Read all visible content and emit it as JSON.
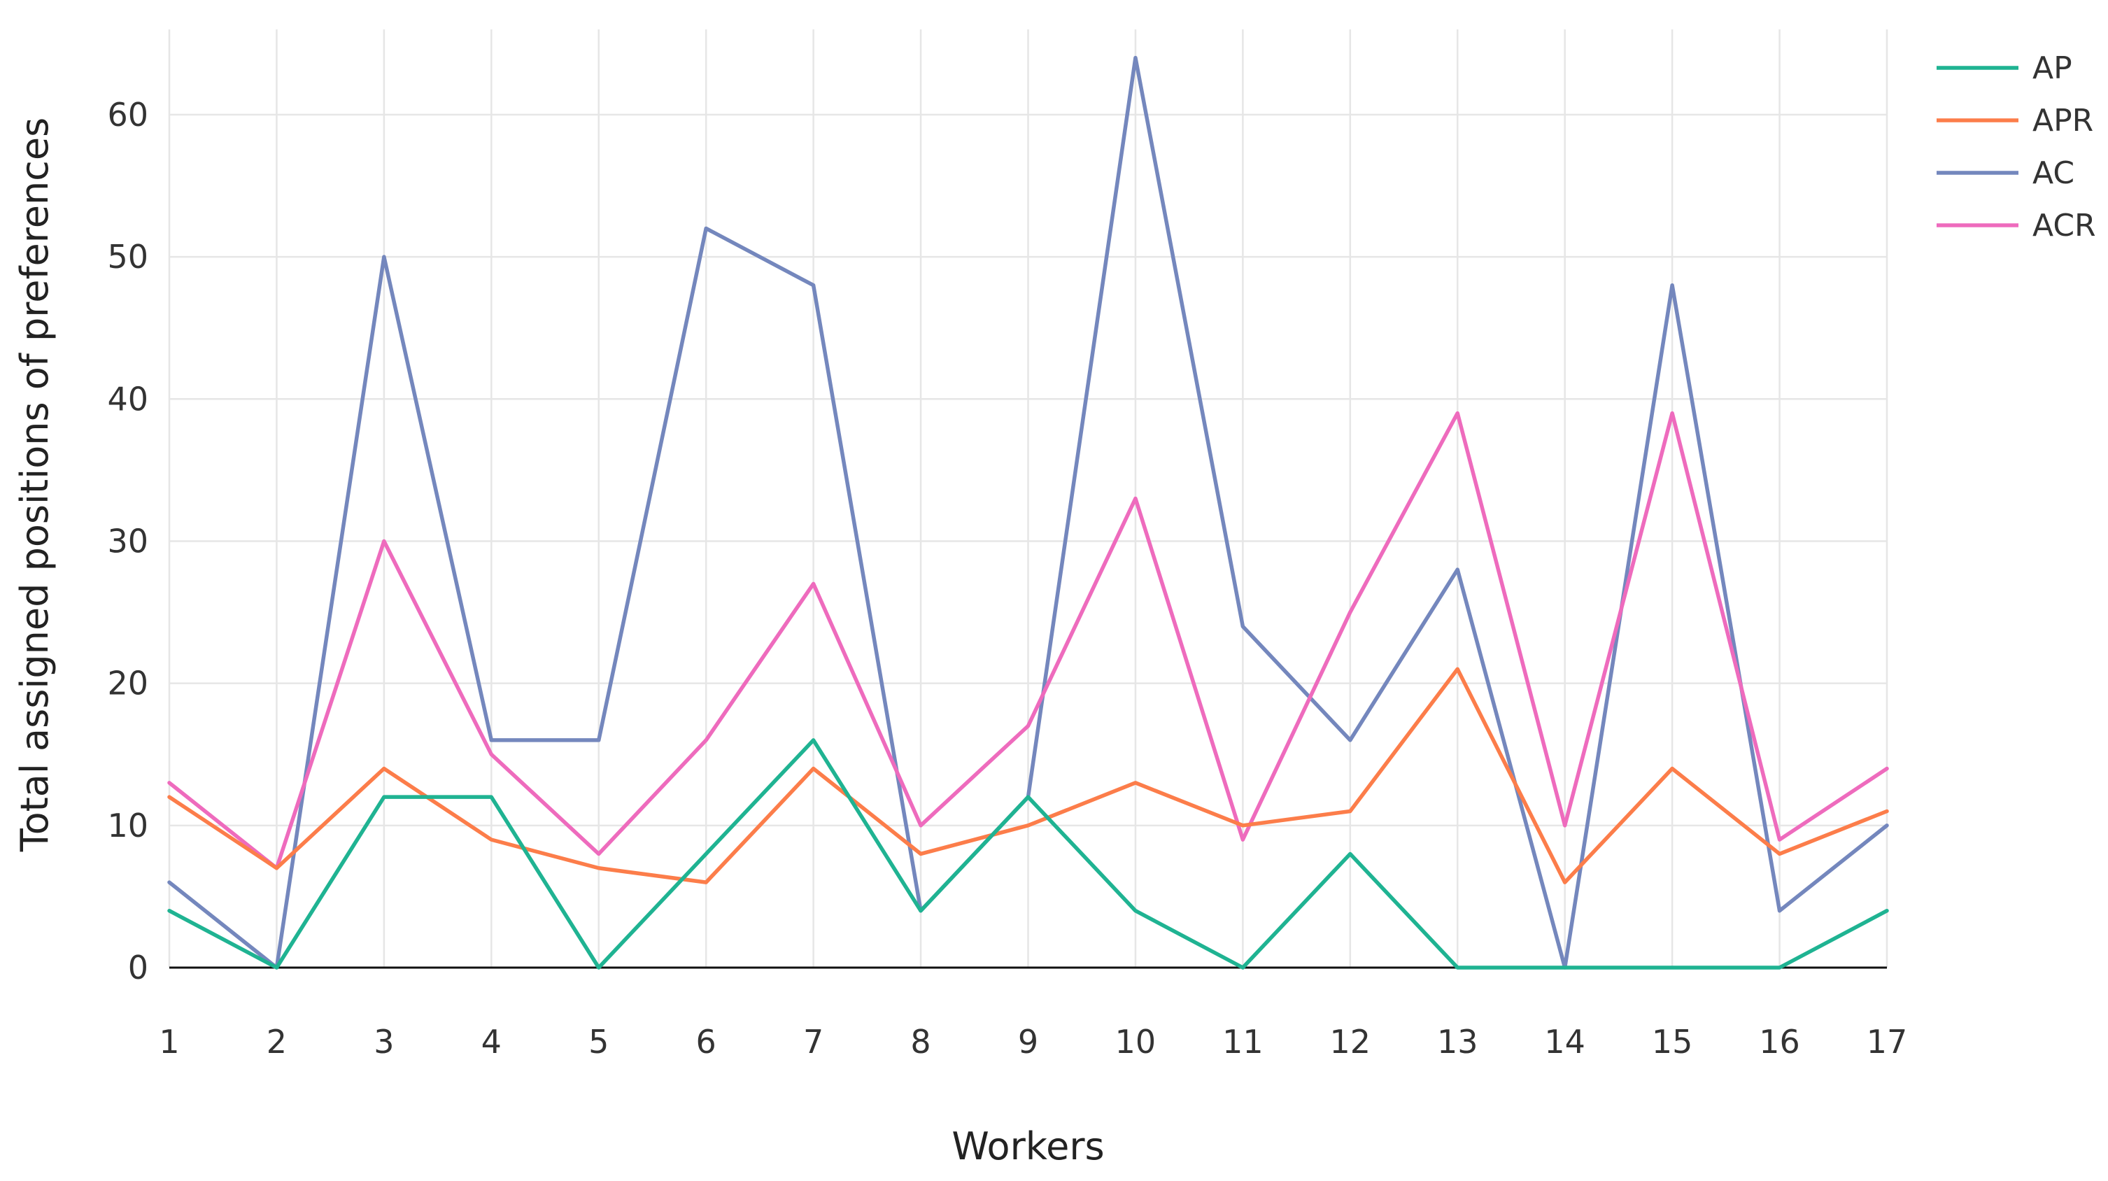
{
  "chart_data": {
    "type": "line",
    "title": "",
    "xlabel": "Workers",
    "ylabel": "Total assigned positions of preferences",
    "x": [
      1,
      2,
      3,
      4,
      5,
      6,
      7,
      8,
      9,
      10,
      11,
      12,
      13,
      14,
      15,
      16,
      17
    ],
    "xlim": [
      1,
      17
    ],
    "ylim": [
      0,
      66
    ],
    "yticks": [
      0,
      10,
      20,
      30,
      40,
      50,
      60
    ],
    "grid": true,
    "legend_position": "top-right",
    "series": [
      {
        "name": "AP",
        "color": "#1fb392",
        "values": [
          4,
          0,
          12,
          12,
          0,
          8,
          16,
          4,
          12,
          4,
          0,
          8,
          0,
          0,
          0,
          0,
          4
        ]
      },
      {
        "name": "APR",
        "color": "#fc7d4a",
        "values": [
          12,
          7,
          14,
          9,
          7,
          6,
          14,
          8,
          10,
          13,
          10,
          11,
          21,
          6,
          14,
          8,
          11
        ]
      },
      {
        "name": "AC",
        "color": "#7487bd",
        "values": [
          6,
          0,
          50,
          16,
          16,
          52,
          48,
          4,
          12,
          64,
          24,
          16,
          28,
          0,
          48,
          4,
          10
        ]
      },
      {
        "name": "ACR",
        "color": "#ee6bbd",
        "values": [
          13,
          7,
          30,
          15,
          8,
          16,
          27,
          10,
          17,
          33,
          9,
          25,
          39,
          10,
          39,
          9,
          14
        ]
      }
    ]
  }
}
